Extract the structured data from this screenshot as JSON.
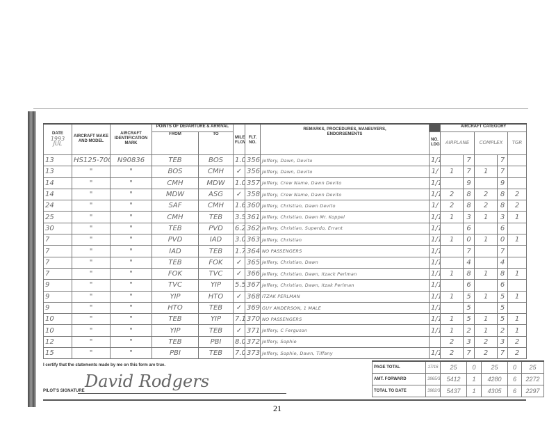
{
  "header": {
    "date": "DATE",
    "year": "1993",
    "month": "JUL",
    "make": "AIRCRAFT MAKE AND MODEL",
    "mark": "AIRCRAFT IDENTIFICATION MARK",
    "points": "POINTS OF DEPARTURE & ARRIVAL",
    "from": "FROM",
    "to": "TO",
    "miles": "MILES FLOWN",
    "flt": "FLT. NO.",
    "remarks": "REMARKS, PROCEDURES, MANEUVERS, ENDORSEMENTS",
    "ldg": "NO. LDG.",
    "category": "AIRCRAFT CATEGORY",
    "airplane": "AIRPLANE",
    "complex": "COMPLEX",
    "tgr": "TGR"
  },
  "rows": [
    [
      "13",
      "HS125-700",
      "N90836",
      "TEB",
      "BOS",
      "1.0",
      "356",
      "Jeffery, Dawn, Devito",
      "1/1",
      "",
      "7",
      "",
      "7",
      ""
    ],
    [
      "13",
      "\"",
      "\"",
      "BOS",
      "CMH",
      "✓",
      "356",
      "Jeffery, Dawn, Devito",
      "1/",
      "1",
      "7",
      "1",
      "7",
      ""
    ],
    [
      "14",
      "\"",
      "\"",
      "CMH",
      "MDW",
      "1.0",
      "357",
      "Jeffery, Crew Name, Dawn Devito",
      "1/1",
      "",
      "9",
      "",
      "9",
      ""
    ],
    [
      "14",
      "\"",
      "\"",
      "MDW",
      "ASG",
      "✓",
      "358",
      "Jeffery, Crew Name, Dawn Devito",
      "1/1",
      "2",
      "8",
      "2",
      "8",
      "2"
    ],
    [
      "24",
      "\"",
      "\"",
      "SAF",
      "CMH",
      "1.6",
      "360",
      "Jeffery, Christian, Dawn Devito",
      "1/",
      "2",
      "8",
      "2",
      "8",
      "2"
    ],
    [
      "25",
      "\"",
      "\"",
      "CMH",
      "TEB",
      "3.5",
      "361",
      "Jeffery, Christian, Dawn Mr. Koppel",
      "1/1",
      "1",
      "3",
      "1",
      "3",
      "1"
    ],
    [
      "30",
      "\"",
      "\"",
      "TEB",
      "PVD",
      "6.2",
      "362",
      "Jeffery, Christian, Superdo, Errant",
      "1/1",
      "",
      "6",
      "",
      "6",
      ""
    ],
    [
      "7",
      "\"",
      "\"",
      "PVD",
      "IAD",
      "3.0",
      "363",
      "Jeffery, Christian",
      "1/1",
      "1",
      "0",
      "1",
      "0",
      "1"
    ],
    [
      "7",
      "\"",
      "\"",
      "IAD",
      "TEB",
      "1.75",
      "364",
      "NO PASSENGERS",
      "1/1",
      "",
      "7",
      "",
      "7",
      ""
    ],
    [
      "7",
      "\"",
      "\"",
      "TEB",
      "FOK",
      "✓",
      "365",
      "Jeffery, Christian, Dawn",
      "1/1",
      "",
      "4",
      "",
      "4",
      ""
    ],
    [
      "7",
      "\"",
      "\"",
      "FOK",
      "TVC",
      "✓",
      "366",
      "Jeffery, Christian, Dawn, Itzack Perlman",
      "1/1",
      "1",
      "8",
      "1",
      "8",
      "1"
    ],
    [
      "9",
      "\"",
      "\"",
      "TVC",
      "YIP",
      "5.5",
      "367",
      "Jeffery, Christian, Dawn, Itzak Perlman",
      "1/1",
      "",
      "6",
      "",
      "6",
      ""
    ],
    [
      "9",
      "\"",
      "\"",
      "YIP",
      "HTO",
      "✓",
      "368",
      "ITZAK PERLMAN",
      "1/1",
      "1",
      "5",
      "1",
      "5",
      "1"
    ],
    [
      "9",
      "\"",
      "\"",
      "HTO",
      "TEB",
      "✓",
      "369",
      "GUY ANDERSON, 1 MALE",
      "1/1",
      "",
      "5",
      "",
      "5",
      ""
    ],
    [
      "10",
      "\"",
      "\"",
      "TEB",
      "YIP",
      "7.1",
      "370",
      "NO PASSENGERS",
      "1/1",
      "1",
      "5",
      "1",
      "5",
      "1"
    ],
    [
      "10",
      "\"",
      "\"",
      "YIP",
      "TEB",
      "✓",
      "371",
      "Jeffery, C Ferguson",
      "1/1",
      "1",
      "2",
      "1",
      "2",
      "1"
    ],
    [
      "12",
      "\"",
      "\"",
      "TEB",
      "PBI",
      "8.0",
      "372",
      "Jeffery, Sophie",
      "",
      "2",
      "3",
      "2",
      "3",
      "2"
    ],
    [
      "15",
      "\"",
      "\"",
      "PBI",
      "TEB",
      "7.0",
      "373",
      "Jeffery, Sophie, Dawn, Tiffany",
      "1/1",
      "2",
      "7",
      "2",
      "7",
      "2"
    ]
  ],
  "footer": {
    "certify": "I certify that the statements made by me on this form are true.",
    "signature_label": "PILOT'S SIGNATURE",
    "signature": "David Rodgers",
    "totals": [
      {
        "label": "PAGE TOTAL",
        "ldg": "17/16",
        "vals": [
          "25",
          "0",
          "25",
          "0",
          "25"
        ]
      },
      {
        "label": "AMT. FORWARD",
        "ldg": "3965/3483",
        "vals": [
          "5412",
          "1",
          "4280",
          "6",
          "2272"
        ]
      },
      {
        "label": "TOTAL TO DATE",
        "ldg": "3982/3499",
        "vals": [
          "5437",
          "1",
          "4305",
          "6",
          "2297"
        ]
      }
    ]
  },
  "page_number": "21"
}
